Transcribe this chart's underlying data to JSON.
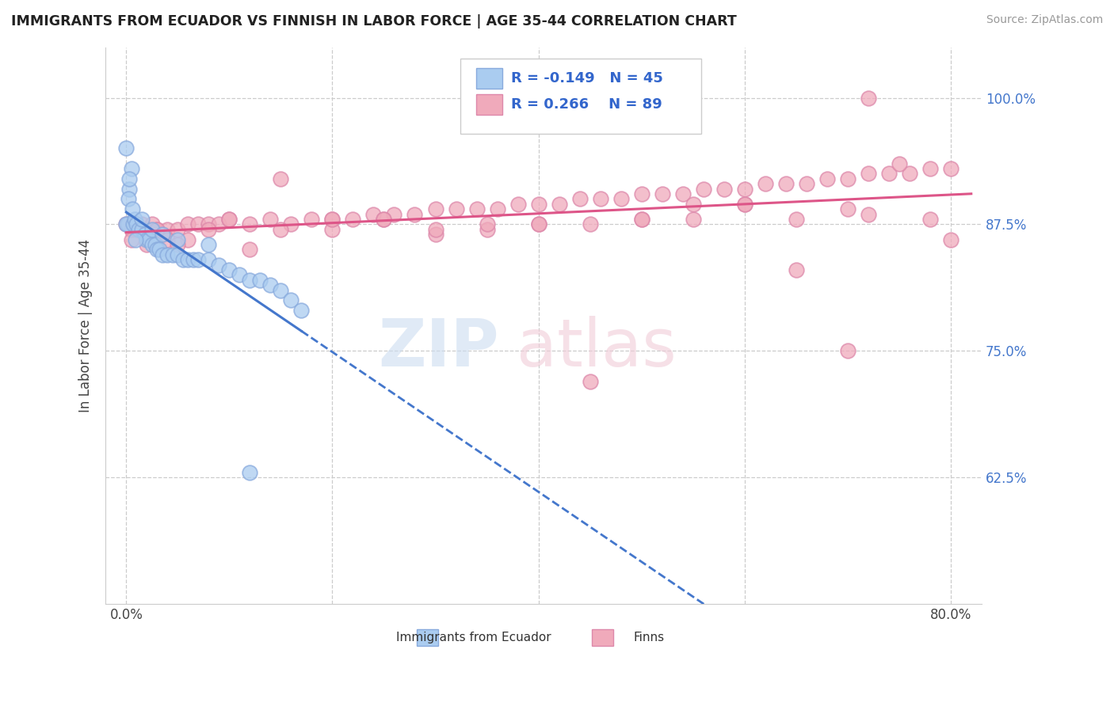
{
  "title": "IMMIGRANTS FROM ECUADOR VS FINNISH IN LABOR FORCE | AGE 35-44 CORRELATION CHART",
  "source": "Source: ZipAtlas.com",
  "ylabel": "In Labor Force | Age 35-44",
  "legend_label_blue": "Immigrants from Ecuador",
  "legend_label_pink": "Finns",
  "r_blue": -0.149,
  "n_blue": 45,
  "r_pink": 0.266,
  "n_pink": 89,
  "blue_color": "#aaccf0",
  "pink_color": "#f0aabb",
  "blue_edge": "#88aadd",
  "pink_edge": "#dd88aa",
  "trend_blue_solid": "#4477cc",
  "trend_pink_solid": "#dd5588",
  "xlim": [
    -0.02,
    0.83
  ],
  "ylim": [
    0.5,
    1.05
  ],
  "x_ticks": [
    0.0,
    0.2,
    0.4,
    0.6,
    0.8
  ],
  "x_tick_labels": [
    "0.0%",
    "",
    "",
    "",
    "80.0%"
  ],
  "y_ticks": [
    0.625,
    0.75,
    0.875,
    1.0
  ],
  "y_tick_labels": [
    "62.5%",
    "75.0%",
    "87.5%",
    "100.0%"
  ],
  "blue_x": [
    0.005,
    0.003,
    0.002,
    0.001,
    0.0,
    0.007,
    0.008,
    0.01,
    0.012,
    0.015,
    0.018,
    0.02,
    0.022,
    0.025,
    0.028,
    0.03,
    0.032,
    0.035,
    0.04,
    0.045,
    0.05,
    0.055,
    0.06,
    0.065,
    0.07,
    0.08,
    0.09,
    0.1,
    0.11,
    0.12,
    0.13,
    0.14,
    0.15,
    0.16,
    0.17,
    0.0,
    0.003,
    0.006,
    0.009,
    0.015,
    0.025,
    0.035,
    0.05,
    0.08,
    0.12
  ],
  "blue_y": [
    0.93,
    0.91,
    0.9,
    0.875,
    0.875,
    0.875,
    0.88,
    0.875,
    0.87,
    0.87,
    0.865,
    0.86,
    0.86,
    0.855,
    0.855,
    0.85,
    0.85,
    0.845,
    0.845,
    0.845,
    0.845,
    0.84,
    0.84,
    0.84,
    0.84,
    0.84,
    0.835,
    0.83,
    0.825,
    0.82,
    0.82,
    0.815,
    0.81,
    0.8,
    0.79,
    0.95,
    0.92,
    0.89,
    0.86,
    0.88,
    0.87,
    0.865,
    0.86,
    0.855,
    0.63
  ],
  "pink_x": [
    0.0,
    0.005,
    0.01,
    0.015,
    0.02,
    0.025,
    0.03,
    0.035,
    0.04,
    0.05,
    0.06,
    0.07,
    0.08,
    0.09,
    0.1,
    0.12,
    0.14,
    0.16,
    0.18,
    0.2,
    0.22,
    0.24,
    0.26,
    0.28,
    0.3,
    0.32,
    0.34,
    0.36,
    0.38,
    0.4,
    0.42,
    0.44,
    0.46,
    0.48,
    0.5,
    0.52,
    0.54,
    0.56,
    0.58,
    0.6,
    0.62,
    0.64,
    0.66,
    0.68,
    0.7,
    0.72,
    0.74,
    0.76,
    0.78,
    0.8,
    0.005,
    0.02,
    0.04,
    0.08,
    0.15,
    0.25,
    0.35,
    0.45,
    0.55,
    0.65,
    0.75,
    0.01,
    0.03,
    0.06,
    0.12,
    0.2,
    0.3,
    0.4,
    0.5,
    0.6,
    0.7,
    0.15,
    0.25,
    0.35,
    0.45,
    0.55,
    0.65,
    0.72,
    0.78,
    0.05,
    0.1,
    0.2,
    0.3,
    0.4,
    0.5,
    0.6,
    0.7,
    0.8,
    0.72
  ],
  "pink_y": [
    0.875,
    0.87,
    0.87,
    0.875,
    0.87,
    0.875,
    0.87,
    0.865,
    0.87,
    0.87,
    0.875,
    0.875,
    0.875,
    0.875,
    0.88,
    0.875,
    0.88,
    0.875,
    0.88,
    0.88,
    0.88,
    0.885,
    0.885,
    0.885,
    0.89,
    0.89,
    0.89,
    0.89,
    0.895,
    0.895,
    0.895,
    0.9,
    0.9,
    0.9,
    0.905,
    0.905,
    0.905,
    0.91,
    0.91,
    0.91,
    0.915,
    0.915,
    0.915,
    0.92,
    0.92,
    0.925,
    0.925,
    0.925,
    0.93,
    0.93,
    0.86,
    0.855,
    0.86,
    0.87,
    0.87,
    0.88,
    0.87,
    0.875,
    0.88,
    0.88,
    0.935,
    0.875,
    0.87,
    0.86,
    0.85,
    0.87,
    0.865,
    0.875,
    0.88,
    0.895,
    0.75,
    0.92,
    0.88,
    0.875,
    0.72,
    0.895,
    0.83,
    0.885,
    0.88,
    0.855,
    0.88,
    0.88,
    0.87,
    0.875,
    0.88,
    0.895,
    0.89,
    0.86,
    1.0
  ]
}
